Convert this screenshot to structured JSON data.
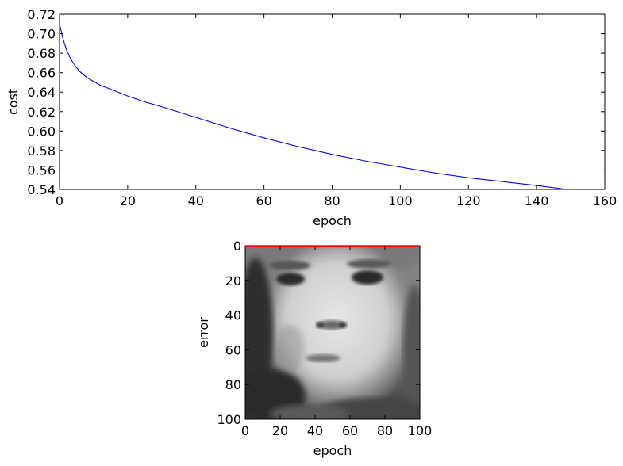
{
  "chart_data": [
    {
      "type": "line",
      "xlabel": "epoch",
      "ylabel": "cost",
      "xlim": [
        0,
        160
      ],
      "ylim": [
        0.54,
        0.72
      ],
      "xticks": [
        0,
        20,
        40,
        60,
        80,
        100,
        120,
        140,
        160
      ],
      "xtick_labels": [
        "0",
        "20",
        "40",
        "60",
        "80",
        "100",
        "120",
        "140",
        "160"
      ],
      "yticks": [
        0.54,
        0.56,
        0.58,
        0.6,
        0.62,
        0.64,
        0.66,
        0.68,
        0.7,
        0.72
      ],
      "ytick_labels": [
        "0.54",
        "0.56",
        "0.58",
        "0.60",
        "0.62",
        "0.64",
        "0.66",
        "0.68",
        "0.70",
        "0.72"
      ],
      "grid": false,
      "series": [
        {
          "color": "#0000ff",
          "x": [
            0,
            1,
            2,
            3,
            4,
            5,
            6,
            8,
            10,
            12,
            15,
            20,
            25,
            30,
            40,
            50,
            60,
            70,
            80,
            90,
            100,
            110,
            120,
            130,
            140,
            149
          ],
          "y": [
            0.71,
            0.695,
            0.684,
            0.676,
            0.67,
            0.665,
            0.661,
            0.655,
            0.651,
            0.647,
            0.643,
            0.636,
            0.63,
            0.625,
            0.614,
            0.603,
            0.593,
            0.584,
            0.576,
            0.569,
            0.563,
            0.557,
            0.552,
            0.548,
            0.544,
            0.54
          ]
        }
      ]
    },
    {
      "type": "image",
      "content": "grayscale face image",
      "xlabel": "epoch",
      "ylabel": "error",
      "xlim": [
        0,
        100
      ],
      "ylim": [
        100,
        0
      ],
      "xticks": [
        0,
        20,
        40,
        60,
        80,
        100
      ],
      "xtick_labels": [
        "0",
        "20",
        "40",
        "60",
        "80",
        "100"
      ],
      "yticks": [
        0,
        20,
        40,
        60,
        80,
        100
      ],
      "ytick_labels": [
        "0",
        "20",
        "40",
        "60",
        "80",
        "100"
      ],
      "overlay_line": {
        "color": "#ff0000",
        "y": 0
      }
    }
  ]
}
